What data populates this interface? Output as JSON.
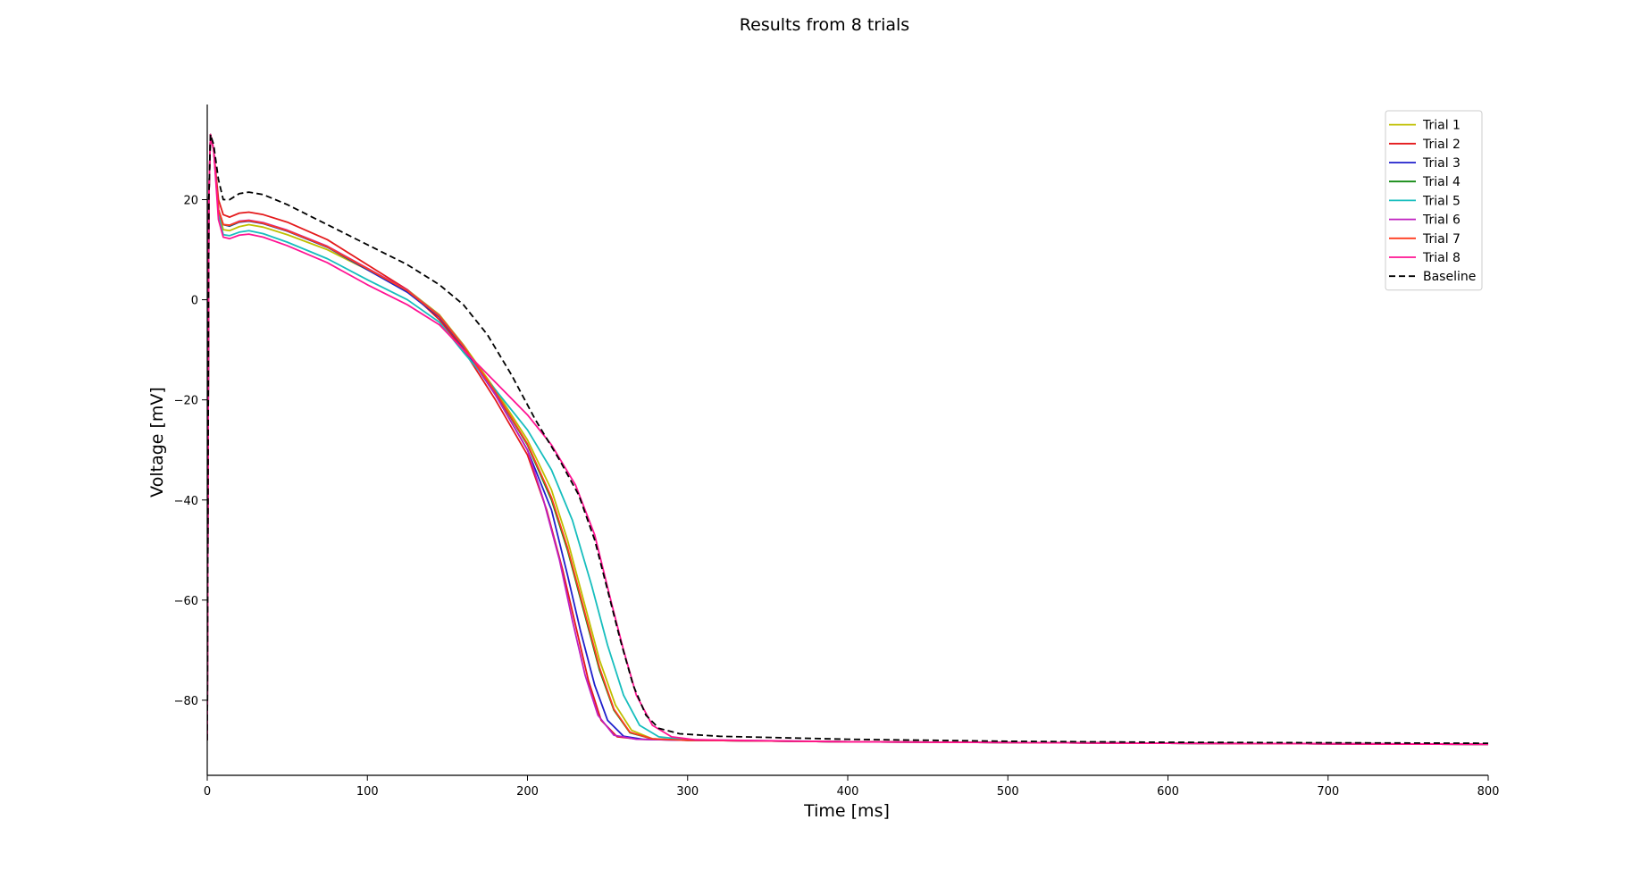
{
  "chart_data": {
    "type": "line",
    "title": "Results from 8 trials",
    "xlabel": "Time [ms]",
    "ylabel": "Voltage [mV]",
    "xlim": [
      0,
      800
    ],
    "ylim": [
      -95,
      39
    ],
    "xticks": [
      0,
      100,
      200,
      300,
      400,
      500,
      600,
      700,
      800
    ],
    "yticks": [
      20,
      0,
      -20,
      -40,
      -60,
      -80
    ],
    "grid": false,
    "legend_position": "top-right",
    "series": [
      {
        "name": "Trial 1",
        "color": "#bfbf00",
        "dash": "solid",
        "points": [
          [
            0,
            -88
          ],
          [
            1,
            20
          ],
          [
            2,
            33
          ],
          [
            4,
            30
          ],
          [
            7,
            18
          ],
          [
            10,
            14
          ],
          [
            14,
            13.8
          ],
          [
            20,
            14.6
          ],
          [
            26,
            15
          ],
          [
            35,
            14.5
          ],
          [
            50,
            13
          ],
          [
            75,
            10
          ],
          [
            100,
            6
          ],
          [
            125,
            2
          ],
          [
            145,
            -3
          ],
          [
            160,
            -9
          ],
          [
            180,
            -18
          ],
          [
            200,
            -28
          ],
          [
            215,
            -38
          ],
          [
            225,
            -48
          ],
          [
            235,
            -60
          ],
          [
            245,
            -72
          ],
          [
            255,
            -81
          ],
          [
            265,
            -86
          ],
          [
            278,
            -87.7
          ],
          [
            300,
            -88
          ],
          [
            400,
            -88.3
          ],
          [
            600,
            -88.6
          ],
          [
            800,
            -88.8
          ]
        ]
      },
      {
        "name": "Trial 2",
        "color": "#e41a1c",
        "dash": "solid",
        "points": [
          [
            0,
            -88
          ],
          [
            1,
            20
          ],
          [
            2,
            33
          ],
          [
            4,
            30
          ],
          [
            7,
            20
          ],
          [
            10,
            17
          ],
          [
            14,
            16.5
          ],
          [
            20,
            17.3
          ],
          [
            26,
            17.5
          ],
          [
            35,
            17
          ],
          [
            50,
            15.5
          ],
          [
            75,
            12
          ],
          [
            100,
            7
          ],
          [
            125,
            2
          ],
          [
            145,
            -4
          ],
          [
            160,
            -10
          ],
          [
            180,
            -20
          ],
          [
            200,
            -31
          ],
          [
            212,
            -42
          ],
          [
            222,
            -54
          ],
          [
            230,
            -65
          ],
          [
            238,
            -76
          ],
          [
            246,
            -84
          ],
          [
            256,
            -87.3
          ],
          [
            270,
            -87.8
          ],
          [
            300,
            -88
          ],
          [
            400,
            -88.3
          ],
          [
            600,
            -88.6
          ],
          [
            800,
            -88.8
          ]
        ]
      },
      {
        "name": "Trial 3",
        "color": "#1f1fcc",
        "dash": "solid",
        "points": [
          [
            0,
            -88
          ],
          [
            1,
            20
          ],
          [
            2,
            33
          ],
          [
            4,
            30
          ],
          [
            7,
            18
          ],
          [
            10,
            15
          ],
          [
            14,
            14.7
          ],
          [
            20,
            15.5
          ],
          [
            26,
            15.7
          ],
          [
            35,
            15.2
          ],
          [
            50,
            13.7
          ],
          [
            75,
            10.5
          ],
          [
            100,
            6
          ],
          [
            125,
            1.5
          ],
          [
            145,
            -3.5
          ],
          [
            160,
            -9.5
          ],
          [
            180,
            -19
          ],
          [
            200,
            -30
          ],
          [
            215,
            -42
          ],
          [
            225,
            -55
          ],
          [
            233,
            -66
          ],
          [
            242,
            -77
          ],
          [
            250,
            -84
          ],
          [
            260,
            -87.2
          ],
          [
            272,
            -87.8
          ],
          [
            300,
            -88
          ],
          [
            400,
            -88.3
          ],
          [
            600,
            -88.6
          ],
          [
            800,
            -88.8
          ]
        ]
      },
      {
        "name": "Trial 4",
        "color": "#138a13",
        "dash": "solid",
        "points": [
          [
            0,
            -88
          ],
          [
            1,
            20
          ],
          [
            2,
            33
          ],
          [
            4,
            30
          ],
          [
            7,
            18
          ],
          [
            10,
            15
          ],
          [
            14,
            14.8
          ],
          [
            20,
            15.6
          ],
          [
            26,
            15.8
          ],
          [
            35,
            15.3
          ],
          [
            50,
            13.8
          ],
          [
            75,
            10.6
          ],
          [
            100,
            6.2
          ],
          [
            125,
            1.8
          ],
          [
            145,
            -3.3
          ],
          [
            160,
            -9.3
          ],
          [
            180,
            -18.5
          ],
          [
            200,
            -29
          ],
          [
            215,
            -40
          ],
          [
            225,
            -50
          ],
          [
            235,
            -62
          ],
          [
            245,
            -74
          ],
          [
            254,
            -82
          ],
          [
            264,
            -86.5
          ],
          [
            278,
            -87.7
          ],
          [
            300,
            -88
          ],
          [
            400,
            -88.3
          ],
          [
            600,
            -88.6
          ],
          [
            800,
            -88.8
          ]
        ]
      },
      {
        "name": "Trial 5",
        "color": "#17bebe",
        "dash": "solid",
        "points": [
          [
            0,
            -88
          ],
          [
            1,
            20
          ],
          [
            2,
            33
          ],
          [
            4,
            30
          ],
          [
            7,
            17
          ],
          [
            10,
            13
          ],
          [
            14,
            12.8
          ],
          [
            20,
            13.5
          ],
          [
            26,
            13.8
          ],
          [
            35,
            13.2
          ],
          [
            50,
            11.5
          ],
          [
            75,
            8.2
          ],
          [
            100,
            4
          ],
          [
            125,
            0
          ],
          [
            145,
            -4.5
          ],
          [
            160,
            -10.5
          ],
          [
            180,
            -18
          ],
          [
            200,
            -26
          ],
          [
            215,
            -34
          ],
          [
            228,
            -44
          ],
          [
            240,
            -57
          ],
          [
            250,
            -69
          ],
          [
            260,
            -79
          ],
          [
            270,
            -85
          ],
          [
            282,
            -87.3
          ],
          [
            300,
            -87.9
          ],
          [
            400,
            -88.3
          ],
          [
            600,
            -88.6
          ],
          [
            800,
            -88.8
          ]
        ]
      },
      {
        "name": "Trial 6",
        "color": "#bf1fbf",
        "dash": "solid",
        "points": [
          [
            0,
            -88
          ],
          [
            1,
            20
          ],
          [
            2,
            33
          ],
          [
            4,
            30
          ],
          [
            7,
            18
          ],
          [
            10,
            15
          ],
          [
            14,
            14.9
          ],
          [
            20,
            15.7
          ],
          [
            26,
            15.9
          ],
          [
            35,
            15.4
          ],
          [
            50,
            13.9
          ],
          [
            75,
            10.7
          ],
          [
            100,
            6.3
          ],
          [
            125,
            1.9
          ],
          [
            145,
            -3.2
          ],
          [
            160,
            -9.2
          ],
          [
            180,
            -19
          ],
          [
            200,
            -30
          ],
          [
            210,
            -40
          ],
          [
            220,
            -52
          ],
          [
            228,
            -64
          ],
          [
            236,
            -75
          ],
          [
            244,
            -83
          ],
          [
            254,
            -87
          ],
          [
            268,
            -87.8
          ],
          [
            300,
            -88
          ],
          [
            400,
            -88.3
          ],
          [
            600,
            -88.6
          ],
          [
            800,
            -88.8
          ]
        ]
      },
      {
        "name": "Trial 7",
        "color": "#ff3b1f",
        "dash": "solid",
        "points": [
          [
            0,
            -88
          ],
          [
            1,
            20
          ],
          [
            2,
            33
          ],
          [
            4,
            30
          ],
          [
            7,
            18
          ],
          [
            10,
            15
          ],
          [
            14,
            14.9
          ],
          [
            20,
            15.6
          ],
          [
            26,
            15.8
          ],
          [
            35,
            15.3
          ],
          [
            50,
            13.8
          ],
          [
            75,
            10.6
          ],
          [
            100,
            6.2
          ],
          [
            125,
            1.8
          ],
          [
            145,
            -3.3
          ],
          [
            160,
            -9.3
          ],
          [
            180,
            -18.4
          ],
          [
            200,
            -28.8
          ],
          [
            215,
            -39.5
          ],
          [
            225,
            -49.5
          ],
          [
            235,
            -61.5
          ],
          [
            245,
            -73.5
          ],
          [
            254,
            -81.8
          ],
          [
            264,
            -86.4
          ],
          [
            278,
            -87.7
          ],
          [
            300,
            -88
          ],
          [
            400,
            -88.3
          ],
          [
            600,
            -88.6
          ],
          [
            800,
            -88.8
          ]
        ]
      },
      {
        "name": "Trial 8",
        "color": "#ff1493",
        "dash": "solid",
        "points": [
          [
            0,
            -88
          ],
          [
            1,
            20
          ],
          [
            2,
            33
          ],
          [
            4,
            30
          ],
          [
            7,
            16
          ],
          [
            10,
            12.5
          ],
          [
            14,
            12.2
          ],
          [
            20,
            12.9
          ],
          [
            26,
            13.1
          ],
          [
            35,
            12.5
          ],
          [
            50,
            10.8
          ],
          [
            75,
            7.4
          ],
          [
            100,
            3
          ],
          [
            125,
            -1
          ],
          [
            145,
            -5
          ],
          [
            160,
            -10
          ],
          [
            180,
            -16.5
          ],
          [
            200,
            -23
          ],
          [
            215,
            -29
          ],
          [
            230,
            -37
          ],
          [
            242,
            -47
          ],
          [
            252,
            -60
          ],
          [
            260,
            -70
          ],
          [
            268,
            -79
          ],
          [
            278,
            -85
          ],
          [
            290,
            -87.3
          ],
          [
            305,
            -87.9
          ],
          [
            400,
            -88.3
          ],
          [
            600,
            -88.6
          ],
          [
            800,
            -88.8
          ]
        ]
      },
      {
        "name": "Baseline",
        "color": "#000000",
        "dash": "dashed",
        "points": [
          [
            0,
            -88
          ],
          [
            1,
            20
          ],
          [
            2,
            33
          ],
          [
            4,
            31
          ],
          [
            7,
            24
          ],
          [
            10,
            20
          ],
          [
            14,
            20
          ],
          [
            20,
            21.2
          ],
          [
            26,
            21.5
          ],
          [
            35,
            21
          ],
          [
            50,
            19
          ],
          [
            75,
            15
          ],
          [
            100,
            11
          ],
          [
            125,
            7
          ],
          [
            145,
            3
          ],
          [
            160,
            -1
          ],
          [
            175,
            -7
          ],
          [
            190,
            -15
          ],
          [
            205,
            -24
          ],
          [
            220,
            -32
          ],
          [
            232,
            -39
          ],
          [
            242,
            -48
          ],
          [
            250,
            -58
          ],
          [
            258,
            -68
          ],
          [
            266,
            -77
          ],
          [
            274,
            -83
          ],
          [
            282,
            -85.6
          ],
          [
            295,
            -86.7
          ],
          [
            320,
            -87.2
          ],
          [
            400,
            -87.8
          ],
          [
            500,
            -88.2
          ],
          [
            600,
            -88.4
          ],
          [
            800,
            -88.6
          ]
        ]
      }
    ]
  }
}
